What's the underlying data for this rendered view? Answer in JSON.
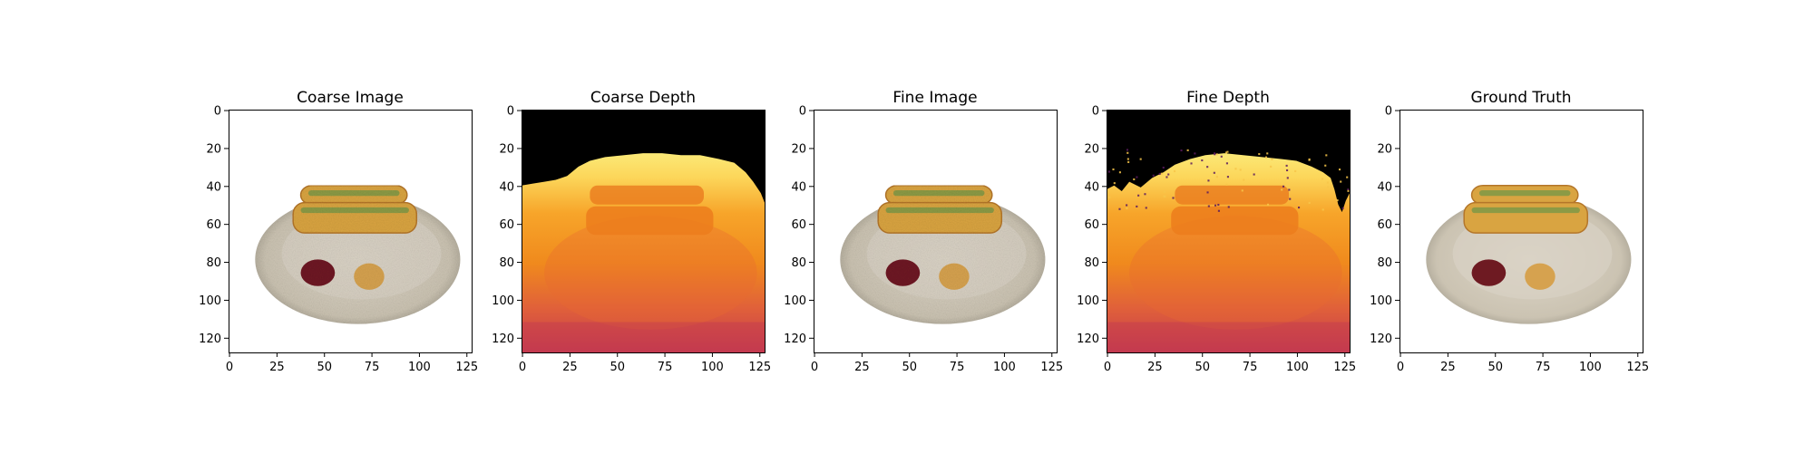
{
  "chart_data": [
    {
      "type": "image",
      "title": "Coarse Image",
      "content": "rgb",
      "x_ticks": [
        0,
        25,
        50,
        75,
        100,
        125
      ],
      "y_ticks": [
        0,
        20,
        40,
        60,
        80,
        100,
        120
      ],
      "xlim": [
        0,
        128
      ],
      "ylim": [
        128,
        0
      ]
    },
    {
      "type": "heatmap",
      "title": "Coarse Depth",
      "content": "depth",
      "colormap": "inferno",
      "x_ticks": [
        0,
        25,
        50,
        75,
        100,
        125
      ],
      "y_ticks": [
        0,
        20,
        40,
        60,
        80,
        100,
        120
      ],
      "xlim": [
        0,
        128
      ],
      "ylim": [
        128,
        0
      ]
    },
    {
      "type": "image",
      "title": "Fine Image",
      "content": "rgb",
      "x_ticks": [
        0,
        25,
        50,
        75,
        100,
        125
      ],
      "y_ticks": [
        0,
        20,
        40,
        60,
        80,
        100,
        120
      ],
      "xlim": [
        0,
        128
      ],
      "ylim": [
        128,
        0
      ]
    },
    {
      "type": "heatmap",
      "title": "Fine Depth",
      "content": "depth",
      "colormap": "inferno",
      "x_ticks": [
        0,
        25,
        50,
        75,
        100,
        125
      ],
      "y_ticks": [
        0,
        20,
        40,
        60,
        80,
        100,
        120
      ],
      "xlim": [
        0,
        128
      ],
      "ylim": [
        128,
        0
      ]
    },
    {
      "type": "image",
      "title": "Ground Truth",
      "content": "rgb",
      "x_ticks": [
        0,
        25,
        50,
        75,
        100,
        125
      ],
      "y_ticks": [
        0,
        20,
        40,
        60,
        80,
        100,
        120
      ],
      "xlim": [
        0,
        128
      ],
      "ylim": [
        128,
        0
      ]
    }
  ],
  "colors": {
    "plate": "#cfc7b8",
    "plate_rim": "#a9a291",
    "bun": "#d9a441",
    "bun_dark": "#b4762a",
    "relish": "#8c9a45",
    "ketchup": "#6e1a22",
    "mustard": "#d6a24f",
    "depth_far": "#000000",
    "depth_near_bright": "#fbe977",
    "depth_mid": "#f08a1d",
    "depth_close": "#c43a4f"
  }
}
